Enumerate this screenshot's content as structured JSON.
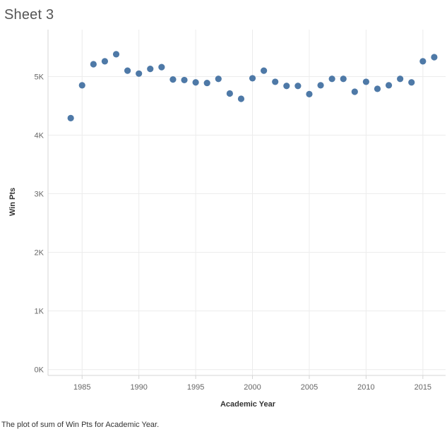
{
  "sheet": {
    "title": "Sheet 3",
    "caption": "The plot of sum of Win Pts for Academic Year."
  },
  "chart_data": {
    "type": "scatter",
    "xlabel": "Academic Year",
    "ylabel": "Win Pts",
    "xlim": [
      1982,
      2017
    ],
    "ylim": [
      -100,
      5800
    ],
    "x_ticks": [
      1985,
      1990,
      1995,
      2000,
      2005,
      2010,
      2015
    ],
    "x_tick_labels": [
      "1985",
      "1990",
      "1995",
      "2000",
      "2005",
      "2010",
      "2015"
    ],
    "y_ticks": [
      0,
      1000,
      2000,
      3000,
      4000,
      5000
    ],
    "y_tick_labels": [
      "0K",
      "1K",
      "2K",
      "3K",
      "4K",
      "5K"
    ],
    "grid": true,
    "point_color": "#4e79a7",
    "x": [
      1984,
      1985,
      1986,
      1987,
      1988,
      1989,
      1990,
      1991,
      1992,
      1993,
      1994,
      1995,
      1996,
      1997,
      1998,
      1999,
      2000,
      2001,
      2002,
      2003,
      2004,
      2005,
      2006,
      2007,
      2008,
      2009,
      2010,
      2011,
      2012,
      2013,
      2014,
      2015,
      2016
    ],
    "y": [
      4290,
      4850,
      5210,
      5260,
      5380,
      5100,
      5050,
      5130,
      5160,
      4950,
      4940,
      4900,
      4890,
      4960,
      4710,
      4620,
      4970,
      5100,
      4910,
      4840,
      4840,
      4700,
      4850,
      4960,
      4960,
      4740,
      4910,
      4790,
      4850,
      4960,
      4900,
      5260,
      5330
    ]
  }
}
